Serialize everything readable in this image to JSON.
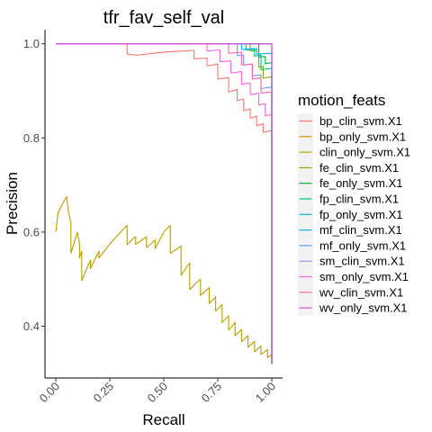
{
  "chart_data": {
    "type": "line",
    "title": "tfr_fav_self_val",
    "xlabel": "Recall",
    "ylabel": "Precision",
    "xlim": [
      -0.05,
      1.05
    ],
    "ylim": [
      0.29,
      1.03
    ],
    "x_ticks": [
      "0.00",
      "0.25",
      "0.50",
      "0.75",
      "1.00"
    ],
    "x_tick_values": [
      0,
      0.25,
      0.5,
      0.75,
      1.0
    ],
    "y_ticks": [
      "0.4",
      "0.6",
      "0.8",
      "1.0"
    ],
    "y_tick_values": [
      0.4,
      0.6,
      0.8,
      1.0
    ],
    "grid": false,
    "x_tick_rotation_deg": 45,
    "legend": {
      "title": "motion_feats",
      "placement": "right",
      "entries": [
        "bp_clin_svm.X1",
        "bp_only_svm.X1",
        "clin_only_svm.X1",
        "fe_clin_svm.X1",
        "fe_only_svm.X1",
        "fp_clin_svm.X1",
        "fp_only_svm.X1",
        "mf_clin_svm.X1",
        "mf_only_svm.X1",
        "sm_clin_svm.X1",
        "sm_only_svm.X1",
        "wv_clin_svm.X1",
        "wv_only_svm.X1"
      ]
    },
    "series": [
      {
        "name": "bp_clin_svm.X1",
        "color": "#F8766D",
        "x": [
          0.0,
          0.33,
          0.33,
          0.38,
          0.45,
          0.52,
          0.6,
          0.64,
          0.64,
          0.7,
          0.7,
          0.75,
          0.75,
          0.8,
          0.8,
          0.84,
          0.84,
          0.87,
          0.87,
          0.9,
          0.9,
          0.93,
          0.93,
          0.96,
          0.96,
          1.0,
          1.0
        ],
        "y": [
          1.0,
          1.0,
          0.978,
          0.976,
          0.98,
          0.983,
          0.985,
          0.986,
          0.968,
          0.97,
          0.953,
          0.957,
          0.925,
          0.928,
          0.898,
          0.903,
          0.879,
          0.883,
          0.858,
          0.862,
          0.842,
          0.846,
          0.826,
          0.83,
          0.812,
          0.816,
          0.32
        ]
      },
      {
        "name": "bp_only_svm.X1",
        "color": "#DE8C00",
        "x": [
          0.0,
          1.0,
          1.0
        ],
        "y": [
          1.0,
          1.0,
          0.32
        ]
      },
      {
        "name": "clin_only_svm.X1",
        "color": "#B79F00",
        "x": [
          0.0,
          0.01,
          0.03,
          0.05,
          0.06,
          0.07,
          0.07,
          0.09,
          0.1,
          0.11,
          0.11,
          0.12,
          0.12,
          0.15,
          0.16,
          0.16,
          0.2,
          0.2,
          0.25,
          0.3,
          0.33,
          0.33,
          0.36,
          0.37,
          0.37,
          0.42,
          0.42,
          0.46,
          0.46,
          0.5,
          0.52,
          0.53,
          0.53,
          0.57,
          0.58,
          0.58,
          0.61,
          0.62,
          0.62,
          0.65,
          0.67,
          0.67,
          0.7,
          0.71,
          0.71,
          0.74,
          0.74,
          0.77,
          0.77,
          0.8,
          0.8,
          0.83,
          0.83,
          0.86,
          0.86,
          0.89,
          0.89,
          0.92,
          0.92,
          0.95,
          0.95,
          0.98,
          0.98,
          1.0,
          1.0
        ],
        "y": [
          0.6,
          0.64,
          0.66,
          0.675,
          0.64,
          0.62,
          0.555,
          0.585,
          0.6,
          0.575,
          0.545,
          0.56,
          0.497,
          0.53,
          0.54,
          0.522,
          0.56,
          0.545,
          0.575,
          0.6,
          0.614,
          0.573,
          0.587,
          0.59,
          0.574,
          0.59,
          0.567,
          0.583,
          0.565,
          0.6,
          0.61,
          0.614,
          0.555,
          0.567,
          0.57,
          0.508,
          0.529,
          0.534,
          0.478,
          0.492,
          0.5,
          0.465,
          0.478,
          0.482,
          0.448,
          0.462,
          0.432,
          0.446,
          0.408,
          0.422,
          0.392,
          0.408,
          0.38,
          0.393,
          0.367,
          0.38,
          0.355,
          0.368,
          0.346,
          0.358,
          0.34,
          0.35,
          0.333,
          0.34,
          0.32
        ]
      },
      {
        "name": "fe_clin_svm.X1",
        "color": "#7CAE00",
        "x": [
          0.0,
          0.9,
          0.9,
          0.94,
          0.94,
          0.96,
          0.96,
          1.0,
          1.0
        ],
        "y": [
          1.0,
          1.0,
          0.985,
          0.986,
          0.95,
          0.952,
          0.927,
          0.93,
          0.32
        ]
      },
      {
        "name": "fe_only_svm.X1",
        "color": "#00BA38",
        "x": [
          0.0,
          0.94,
          0.94,
          0.97,
          0.97,
          1.0,
          1.0
        ],
        "y": [
          1.0,
          1.0,
          0.972,
          0.973,
          0.958,
          0.96,
          0.32
        ]
      },
      {
        "name": "fp_clin_svm.X1",
        "color": "#00C08B",
        "x": [
          0.0,
          0.88,
          0.88,
          0.92,
          0.92,
          0.95,
          0.95,
          1.0,
          1.0
        ],
        "y": [
          1.0,
          1.0,
          0.987,
          0.988,
          0.974,
          0.976,
          0.945,
          0.948,
          0.32
        ]
      },
      {
        "name": "fp_only_svm.X1",
        "color": "#00BFC4",
        "x": [
          0.0,
          1.0,
          1.0
        ],
        "y": [
          1.0,
          1.0,
          0.32
        ]
      },
      {
        "name": "mf_clin_svm.X1",
        "color": "#00B4F0",
        "x": [
          0.0,
          0.86,
          0.86,
          0.93,
          0.93,
          1.0,
          1.0
        ],
        "y": [
          1.0,
          1.0,
          0.988,
          0.99,
          0.978,
          0.98,
          0.32
        ]
      },
      {
        "name": "mf_only_svm.X1",
        "color": "#619CFF",
        "x": [
          0.0,
          0.84,
          0.84,
          0.87,
          0.87,
          0.91,
          0.91,
          0.95,
          0.95,
          1.0,
          1.0
        ],
        "y": [
          1.0,
          1.0,
          0.975,
          0.976,
          0.955,
          0.957,
          0.932,
          0.934,
          0.905,
          0.908,
          0.32
        ]
      },
      {
        "name": "sm_clin_svm.X1",
        "color": "#B983FF",
        "x": [
          0.0,
          1.0,
          1.0
        ],
        "y": [
          1.0,
          1.0,
          0.32
        ]
      },
      {
        "name": "sm_only_svm.X1",
        "color": "#F564E3",
        "x": [
          0.0,
          0.7,
          0.7,
          0.76,
          0.76,
          0.81,
          0.81,
          0.86,
          0.86,
          0.9,
          0.9,
          0.94,
          0.94,
          0.97,
          0.97,
          1.0,
          1.0
        ],
        "y": [
          1.0,
          1.0,
          0.985,
          0.987,
          0.962,
          0.964,
          0.938,
          0.941,
          0.914,
          0.917,
          0.892,
          0.895,
          0.87,
          0.873,
          0.847,
          0.85,
          0.32
        ]
      },
      {
        "name": "wv_clin_svm.X1",
        "color": "#FF64B0",
        "x": [
          0.0,
          0.8,
          0.8,
          0.86,
          0.86,
          0.91,
          0.91,
          0.95,
          0.95,
          1.0,
          1.0
        ],
        "y": [
          1.0,
          1.0,
          0.98,
          0.982,
          0.955,
          0.957,
          0.925,
          0.928,
          0.895,
          0.898,
          0.32
        ]
      },
      {
        "name": "wv_only_svm.X1",
        "color": "#CC4FD0",
        "x": [
          0.0,
          1.0,
          1.0
        ],
        "y": [
          1.0,
          1.0,
          0.32
        ]
      }
    ]
  }
}
